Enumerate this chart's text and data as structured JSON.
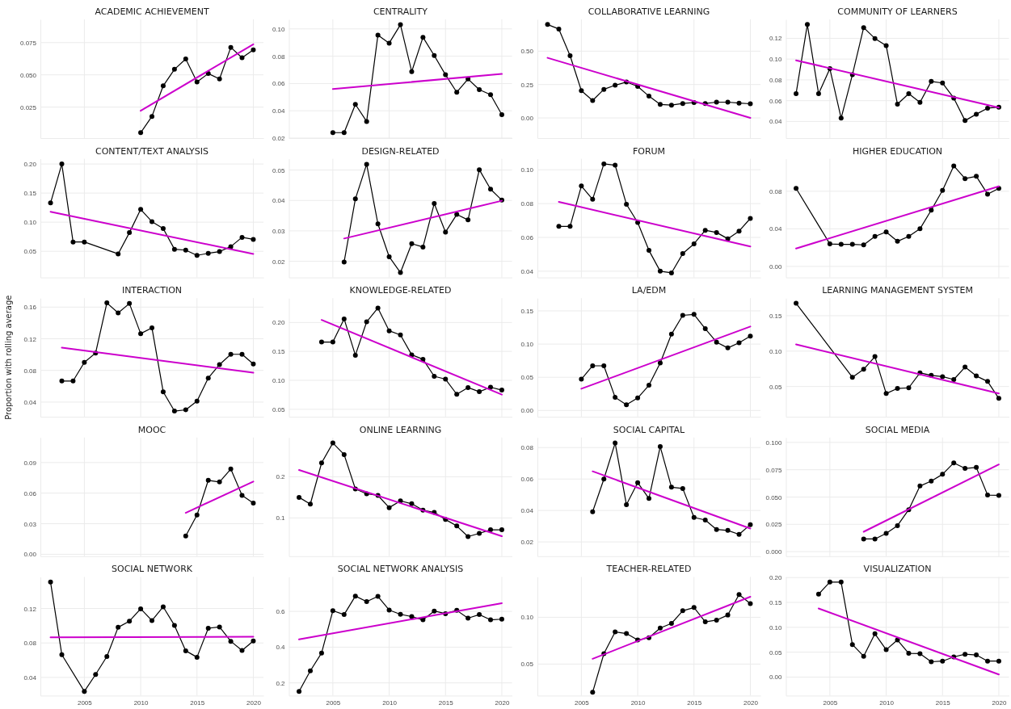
{
  "chart_data": [
    {
      "type": "line",
      "title": "ACADEMIC ACHIEVEMENT",
      "xlim": [
        2001.1,
        2020.9
      ],
      "xticks": [
        2005,
        2010,
        2015,
        2020
      ],
      "ylim": [
        0.001,
        0.093
      ],
      "yticks": [
        {
          "value": 0.025,
          "label": "0.025"
        },
        {
          "value": 0.05,
          "label": "0.050"
        },
        {
          "value": 0.075,
          "label": "0.075"
        }
      ],
      "grid": true,
      "tick_labels": "y",
      "series": [
        {
          "color": "#000000",
          "marker": "circle",
          "x": [
            2010,
            2011,
            2012,
            2013,
            2014,
            2015,
            2016,
            2017,
            2018,
            2019,
            2020
          ],
          "values": [
            0.0052,
            0.0178,
            0.0415,
            0.0543,
            0.0623,
            0.0445,
            0.051,
            0.0468,
            0.0713,
            0.0633,
            0.0693
          ]
        },
        {
          "color": "#cc00cc",
          "marker": "none",
          "x": [
            2010,
            2020
          ],
          "values": [
            0.0222,
            0.0737
          ]
        }
      ]
    },
    {
      "type": "line",
      "title": "CENTRALITY",
      "xlim": [
        2001.1,
        2020.9
      ],
      "xticks": [
        2005,
        2010,
        2015,
        2020
      ],
      "ylim": [
        0.02,
        0.107
      ],
      "yticks": [
        {
          "value": 0.02,
          "label": "0.02"
        },
        {
          "value": 0.04,
          "label": "0.04"
        },
        {
          "value": 0.06,
          "label": "0.06"
        },
        {
          "value": 0.08,
          "label": "0.08"
        },
        {
          "value": 0.1,
          "label": "0.10"
        }
      ],
      "grid": true,
      "tick_labels": "y",
      "series": [
        {
          "color": "#000000",
          "marker": "circle",
          "x": [
            2005,
            2006,
            2007,
            2008,
            2009,
            2010,
            2011,
            2012,
            2013,
            2014,
            2015,
            2016,
            2017,
            2018,
            2019,
            2020
          ],
          "values": [
            0.024,
            0.024,
            0.0447,
            0.0322,
            0.0955,
            0.0896,
            0.1031,
            0.0687,
            0.0939,
            0.0805,
            0.0664,
            0.0536,
            0.0633,
            0.0555,
            0.0518,
            0.0372
          ]
        },
        {
          "color": "#cc00cc",
          "marker": "none",
          "x": [
            2005,
            2020
          ],
          "values": [
            0.056,
            0.067
          ]
        }
      ]
    },
    {
      "type": "line",
      "title": "COLLABORATIVE LEARNING",
      "xlim": [
        2001.1,
        2020.9
      ],
      "xticks": [
        2005,
        2010,
        2015,
        2020
      ],
      "ylim": [
        -0.151,
        0.738
      ],
      "yticks": [
        {
          "value": 0,
          "label": "0.00"
        },
        {
          "value": 0.25,
          "label": "0.25"
        },
        {
          "value": 0.5,
          "label": "0.50"
        }
      ],
      "grid": true,
      "tick_labels": "y",
      "series": [
        {
          "color": "#000000",
          "marker": "circle",
          "x": [
            2002,
            2003,
            2004,
            2005,
            2006,
            2007,
            2008,
            2009,
            2010,
            2011,
            2012,
            2013,
            2014,
            2015,
            2016,
            2017,
            2018,
            2019,
            2020
          ],
          "values": [
            0.6995,
            0.666,
            0.466,
            0.204,
            0.13,
            0.214,
            0.245,
            0.269,
            0.236,
            0.163,
            0.101,
            0.096,
            0.108,
            0.115,
            0.108,
            0.118,
            0.118,
            0.111,
            0.106
          ]
        },
        {
          "color": "#cc00cc",
          "marker": "none",
          "x": [
            2002,
            2020
          ],
          "values": [
            0.45,
            0
          ]
        }
      ]
    },
    {
      "type": "line",
      "title": "COMMUNITY OF LEARNERS",
      "xlim": [
        2001.1,
        2020.9
      ],
      "xticks": [
        2005,
        2010,
        2015,
        2020
      ],
      "ylim": [
        0.024,
        0.1382
      ],
      "yticks": [
        {
          "value": 0.04,
          "label": "0.04"
        },
        {
          "value": 0.06,
          "label": "0.06"
        },
        {
          "value": 0.08,
          "label": "0.08"
        },
        {
          "value": 0.1,
          "label": "0.10"
        },
        {
          "value": 0.12,
          "label": "0.12"
        }
      ],
      "grid": true,
      "tick_labels": "y",
      "series": [
        {
          "color": "#000000",
          "marker": "circle",
          "x": [
            2002,
            2003,
            2004,
            2005,
            2006,
            2007,
            2008,
            2009,
            2010,
            2011,
            2012,
            2013,
            2014,
            2015,
            2016,
            2017,
            2018,
            2019,
            2020
          ],
          "values": [
            0.0667,
            0.1333,
            0.0667,
            0.0908,
            0.0432,
            0.0849,
            0.1303,
            0.1198,
            0.113,
            0.0566,
            0.0667,
            0.0584,
            0.0785,
            0.077,
            0.0625,
            0.0408,
            0.047,
            0.0528,
            0.0538
          ]
        },
        {
          "color": "#cc00cc",
          "marker": "none",
          "x": [
            2002,
            2020
          ],
          "values": [
            0.0988,
            0.0534
          ]
        }
      ]
    },
    {
      "type": "line",
      "title": "CONTENT/TEXT ANALYSIS",
      "xlim": [
        2001.1,
        2020.9
      ],
      "xticks": [
        2005,
        2010,
        2015,
        2020
      ],
      "ylim": [
        0.005,
        0.209
      ],
      "yticks": [
        {
          "value": 0.05,
          "label": "0.05"
        },
        {
          "value": 0.1,
          "label": "0.10"
        },
        {
          "value": 0.15,
          "label": "0.15"
        },
        {
          "value": 0.2,
          "label": "0.20"
        }
      ],
      "grid": true,
      "tick_labels": "y",
      "series": [
        {
          "color": "#000000",
          "marker": "circle",
          "x": [
            2002,
            2003,
            2004,
            2005,
            2008,
            2009,
            2010,
            2011,
            2012,
            2013,
            2014,
            2015,
            2016,
            2017,
            2018,
            2019,
            2020
          ],
          "values": [
            0.133,
            0.2,
            0.066,
            0.066,
            0.0455,
            0.082,
            0.122,
            0.101,
            0.089,
            0.0535,
            0.052,
            0.043,
            0.0465,
            0.0495,
            0.058,
            0.074,
            0.0705
          ]
        },
        {
          "color": "#cc00cc",
          "marker": "none",
          "x": [
            2002,
            2020
          ],
          "values": [
            0.118,
            0.0455
          ]
        }
      ]
    },
    {
      "type": "line",
      "title": "DESIGN-RELATED",
      "xlim": [
        2001.1,
        2020.9
      ],
      "xticks": [
        2005,
        2010,
        2015,
        2020
      ],
      "ylim": [
        0.0147,
        0.0537
      ],
      "yticks": [
        {
          "value": 0.02,
          "label": "0.02"
        },
        {
          "value": 0.03,
          "label": "0.03"
        },
        {
          "value": 0.04,
          "label": "0.04"
        },
        {
          "value": 0.05,
          "label": "0.05"
        }
      ],
      "grid": true,
      "tick_labels": "y",
      "series": [
        {
          "color": "#000000",
          "marker": "circle",
          "x": [
            2006,
            2007,
            2008,
            2009,
            2010,
            2011,
            2012,
            2013,
            2014,
            2015,
            2016,
            2017,
            2018,
            2019,
            2020
          ],
          "values": [
            0.0198,
            0.0405,
            0.0519,
            0.0323,
            0.0215,
            0.0163,
            0.0258,
            0.0247,
            0.039,
            0.0296,
            0.0354,
            0.0336,
            0.0501,
            0.0437,
            0.0401
          ]
        },
        {
          "color": "#cc00cc",
          "marker": "none",
          "x": [
            2006,
            2020
          ],
          "values": [
            0.0275,
            0.0399
          ]
        }
      ]
    },
    {
      "type": "line",
      "title": "FORUM",
      "xlim": [
        2001.1,
        2020.9
      ],
      "xticks": [
        2005,
        2010,
        2015,
        2020
      ],
      "ylim": [
        0.0363,
        0.1065
      ],
      "yticks": [
        {
          "value": 0.04,
          "label": "0.04"
        },
        {
          "value": 0.06,
          "label": "0.06"
        },
        {
          "value": 0.08,
          "label": "0.08"
        },
        {
          "value": 0.1,
          "label": "0.10"
        }
      ],
      "grid": true,
      "tick_labels": "y",
      "series": [
        {
          "color": "#000000",
          "marker": "circle",
          "x": [
            2003,
            2004,
            2005,
            2006,
            2007,
            2008,
            2009,
            2010,
            2011,
            2012,
            2013,
            2014,
            2015,
            2016,
            2017,
            2018,
            2019,
            2020
          ],
          "values": [
            0.0665,
            0.0665,
            0.0904,
            0.0825,
            0.1035,
            0.1027,
            0.0796,
            0.0688,
            0.0523,
            0.04,
            0.039,
            0.0504,
            0.0562,
            0.0642,
            0.0629,
            0.0592,
            0.0637,
            0.0712
          ]
        },
        {
          "color": "#cc00cc",
          "marker": "none",
          "x": [
            2003,
            2020
          ],
          "values": [
            0.081,
            0.0546
          ]
        }
      ]
    },
    {
      "type": "line",
      "title": "HIGHER EDUCATION",
      "xlim": [
        2001.1,
        2020.9
      ],
      "xticks": [
        2005,
        2010,
        2015,
        2020
      ],
      "ylim": [
        -0.0118,
        0.1146
      ],
      "yticks": [
        {
          "value": 0,
          "label": "0.00"
        },
        {
          "value": 0.04,
          "label": "0.04"
        },
        {
          "value": 0.08,
          "label": "0.08"
        }
      ],
      "grid": true,
      "tick_labels": "y",
      "series": [
        {
          "color": "#000000",
          "marker": "circle",
          "x": [
            2002,
            2005,
            2006,
            2007,
            2008,
            2009,
            2010,
            2011,
            2012,
            2013,
            2014,
            2015,
            2016,
            2017,
            2018,
            2019,
            2020
          ],
          "values": [
            0.0831,
            0.0239,
            0.0235,
            0.0235,
            0.0229,
            0.0319,
            0.0367,
            0.0267,
            0.0319,
            0.04,
            0.0599,
            0.081,
            0.107,
            0.0935,
            0.0959,
            0.0769,
            0.0831
          ]
        },
        {
          "color": "#cc00cc",
          "marker": "none",
          "x": [
            2002,
            2020
          ],
          "values": [
            0.019,
            0.0852
          ]
        }
      ]
    },
    {
      "type": "line",
      "title": "INTERACTION",
      "ylabel": "Proportion with rolling average",
      "xlim": [
        2001.1,
        2020.9
      ],
      "xticks": [
        2005,
        2010,
        2015,
        2020
      ],
      "ylim": [
        0.0214,
        0.1713
      ],
      "yticks": [
        {
          "value": 0.04,
          "label": "0.04"
        },
        {
          "value": 0.08,
          "label": "0.08"
        },
        {
          "value": 0.12,
          "label": "0.12"
        },
        {
          "value": 0.16,
          "label": "0.16"
        }
      ],
      "grid": true,
      "tick_labels": "y",
      "series": [
        {
          "color": "#000000",
          "marker": "circle",
          "x": [
            2003,
            2004,
            2005,
            2006,
            2007,
            2008,
            2009,
            2010,
            2011,
            2012,
            2013,
            2014,
            2015,
            2016,
            2017,
            2018,
            2019,
            2020
          ],
          "values": [
            0.0667,
            0.0667,
            0.0902,
            0.102,
            0.1653,
            0.1527,
            0.1645,
            0.1265,
            0.1338,
            0.053,
            0.0287,
            0.0303,
            0.0413,
            0.0704,
            0.0874,
            0.1004,
            0.1004,
            0.0882
          ]
        },
        {
          "color": "#cc00cc",
          "marker": "none",
          "x": [
            2003,
            2020
          ],
          "values": [
            0.1087,
            0.0771
          ]
        }
      ]
    },
    {
      "type": "line",
      "title": "KNOWLEDGE-RELATED",
      "xlim": [
        2001.1,
        2020.9
      ],
      "xticks": [
        2005,
        2010,
        2015,
        2020
      ],
      "ylim": [
        0.037,
        0.242
      ],
      "yticks": [
        {
          "value": 0.05,
          "label": "0.05"
        },
        {
          "value": 0.1,
          "label": "0.10"
        },
        {
          "value": 0.15,
          "label": "0.15"
        },
        {
          "value": 0.2,
          "label": "0.20"
        }
      ],
      "grid": true,
      "tick_labels": "y",
      "series": [
        {
          "color": "#000000",
          "marker": "circle",
          "x": [
            2004,
            2005,
            2006,
            2007,
            2008,
            2009,
            2010,
            2011,
            2012,
            2013,
            2014,
            2015,
            2016,
            2017,
            2018,
            2019,
            2020
          ],
          "values": [
            0.1662,
            0.1662,
            0.2061,
            0.1434,
            0.2011,
            0.2249,
            0.1856,
            0.1784,
            0.1441,
            0.1364,
            0.107,
            0.1021,
            0.076,
            0.0876,
            0.0804,
            0.0882,
            0.0832
          ]
        },
        {
          "color": "#cc00cc",
          "marker": "none",
          "x": [
            2004,
            2020
          ],
          "values": [
            0.2044,
            0.0754
          ]
        }
      ]
    },
    {
      "type": "line",
      "title": "LA/EDM",
      "xlim": [
        2001.1,
        2020.9
      ],
      "xticks": [
        2005,
        2010,
        2015,
        2020
      ],
      "ylim": [
        -0.0096,
        0.1692
      ],
      "yticks": [
        {
          "value": 0,
          "label": "0.00"
        },
        {
          "value": 0.05,
          "label": "0.05"
        },
        {
          "value": 0.1,
          "label": "0.10"
        },
        {
          "value": 0.15,
          "label": "0.15"
        }
      ],
      "grid": true,
      "tick_labels": "y",
      "series": [
        {
          "color": "#000000",
          "marker": "circle",
          "x": [
            2005,
            2006,
            2007,
            2008,
            2009,
            2010,
            2011,
            2012,
            2013,
            2014,
            2015,
            2016,
            2017,
            2018,
            2019,
            2020
          ],
          "values": [
            0.0471,
            0.0673,
            0.0673,
            0.0197,
            0.0087,
            0.0188,
            0.038,
            0.0716,
            0.1149,
            0.1433,
            0.1447,
            0.1231,
            0.1029,
            0.0942,
            0.1019,
            0.112
          ]
        },
        {
          "color": "#cc00cc",
          "marker": "none",
          "x": [
            2005,
            2020
          ],
          "values": [
            0.0327,
            0.1264
          ]
        }
      ]
    },
    {
      "type": "line",
      "title": "LEARNING MANAGEMENT SYSTEM",
      "xlim": [
        2001.1,
        2020.9
      ],
      "xticks": [
        2005,
        2010,
        2015,
        2020
      ],
      "ylim": [
        0.0072,
        0.1748
      ],
      "yticks": [
        {
          "value": 0.05,
          "label": "0.05"
        },
        {
          "value": 0.1,
          "label": "0.10"
        },
        {
          "value": 0.15,
          "label": "0.15"
        }
      ],
      "grid": true,
      "tick_labels": "y",
      "series": [
        {
          "color": "#000000",
          "marker": "circle",
          "x": [
            2002,
            2007,
            2008,
            2009,
            2010,
            2011,
            2012,
            2013,
            2014,
            2015,
            2016,
            2017,
            2018,
            2019,
            2020
          ],
          "values": [
            0.1676,
            0.0631,
            0.0743,
            0.0923,
            0.0401,
            0.0473,
            0.0482,
            0.0694,
            0.0658,
            0.064,
            0.0599,
            0.0775,
            0.0649,
            0.0572,
            0.0333
          ]
        },
        {
          "color": "#cc00cc",
          "marker": "none",
          "x": [
            2002,
            2020
          ],
          "values": [
            0.1095,
            0.0401
          ]
        }
      ]
    },
    {
      "type": "line",
      "title": "MOOC",
      "xlim": [
        2001.1,
        2020.9
      ],
      "xticks": [
        2005,
        2010,
        2015,
        2020
      ],
      "ylim": [
        -0.0019,
        0.1146
      ],
      "yticks": [
        {
          "value": 0,
          "label": "0.00"
        },
        {
          "value": 0.03,
          "label": "0.03"
        },
        {
          "value": 0.06,
          "label": "0.06"
        },
        {
          "value": 0.09,
          "label": "0.09"
        }
      ],
      "grid": true,
      "tick_labels": "y",
      "series": [
        {
          "color": "#000000",
          "marker": "circle",
          "x": [
            2014,
            2015,
            2016,
            2017,
            2018,
            2019,
            2020
          ],
          "values": [
            0.018,
            0.0385,
            0.0726,
            0.071,
            0.0837,
            0.0578,
            0.0502
          ]
        },
        {
          "color": "#cc00cc",
          "marker": "none",
          "x": [
            2014,
            2020
          ],
          "values": [
            0.0407,
            0.0714
          ]
        }
      ]
    },
    {
      "type": "line",
      "title": "ONLINE LEARNING",
      "xlim": [
        2001.1,
        2020.9
      ],
      "xticks": [
        2005,
        2010,
        2015,
        2020
      ],
      "ylim": [
        0.007,
        0.2953
      ],
      "yticks": [
        {
          "value": 0.1,
          "label": "0.1"
        },
        {
          "value": 0.2,
          "label": "0.2"
        }
      ],
      "grid": true,
      "tick_labels": "y",
      "series": [
        {
          "color": "#000000",
          "marker": "circle",
          "x": [
            2002,
            2003,
            2004,
            2005,
            2006,
            2007,
            2008,
            2009,
            2010,
            2011,
            2012,
            2013,
            2014,
            2015,
            2016,
            2017,
            2018,
            2019,
            2020
          ],
          "values": [
            0.15,
            0.1336,
            0.2336,
            0.282,
            0.2539,
            0.1703,
            0.1586,
            0.1547,
            0.125,
            0.1414,
            0.1344,
            0.1187,
            0.1133,
            0.0961,
            0.0805,
            0.0547,
            0.0625,
            0.0711,
            0.0711
          ]
        },
        {
          "color": "#cc00cc",
          "marker": "none",
          "x": [
            2002,
            2020
          ],
          "values": [
            0.2164,
            0.0555
          ]
        }
      ]
    },
    {
      "type": "line",
      "title": "SOCIAL CAPITAL",
      "xlim": [
        2001.1,
        2020.9
      ],
      "xticks": [
        2005,
        2010,
        2015,
        2020
      ],
      "ylim": [
        0.0109,
        0.0864
      ],
      "yticks": [
        {
          "value": 0.02,
          "label": "0.02"
        },
        {
          "value": 0.04,
          "label": "0.04"
        },
        {
          "value": 0.06,
          "label": "0.06"
        },
        {
          "value": 0.08,
          "label": "0.08"
        }
      ],
      "grid": true,
      "tick_labels": "y",
      "series": [
        {
          "color": "#000000",
          "marker": "circle",
          "x": [
            2006,
            2007,
            2008,
            2009,
            2010,
            2011,
            2012,
            2013,
            2014,
            2015,
            2016,
            2017,
            2018,
            2019,
            2020
          ],
          "values": [
            0.0392,
            0.06,
            0.0829,
            0.0437,
            0.0577,
            0.0476,
            0.0806,
            0.0548,
            0.054,
            0.0356,
            0.0339,
            0.0279,
            0.0273,
            0.0248,
            0.031
          ]
        },
        {
          "color": "#cc00cc",
          "marker": "none",
          "x": [
            2006,
            2020
          ],
          "values": [
            0.0649,
            0.0285
          ]
        }
      ]
    },
    {
      "type": "line",
      "title": "SOCIAL MEDIA",
      "xlim": [
        2001.1,
        2020.9
      ],
      "xticks": [
        2005,
        2010,
        2015,
        2020
      ],
      "ylim": [
        -0.0042,
        0.1045
      ],
      "yticks": [
        {
          "value": 0,
          "label": "0.000"
        },
        {
          "value": 0.025,
          "label": "0.025"
        },
        {
          "value": 0.05,
          "label": "0.050"
        },
        {
          "value": 0.075,
          "label": "0.075"
        },
        {
          "value": 0.1,
          "label": "0.100"
        }
      ],
      "grid": true,
      "tick_labels": "y",
      "series": [
        {
          "color": "#000000",
          "marker": "circle",
          "x": [
            2008,
            2009,
            2010,
            2011,
            2012,
            2013,
            2014,
            2015,
            2016,
            2017,
            2018,
            2019,
            2020
          ],
          "values": [
            0.0116,
            0.0116,
            0.0167,
            0.0238,
            0.0384,
            0.0601,
            0.0646,
            0.0708,
            0.0813,
            0.0762,
            0.0771,
            0.0518,
            0.0515
          ]
        },
        {
          "color": "#cc00cc",
          "marker": "none",
          "x": [
            2008,
            2020
          ],
          "values": [
            0.0182,
            0.0798
          ]
        }
      ]
    },
    {
      "type": "line",
      "title": "SOCIAL NETWORK",
      "xlim": [
        2001.1,
        2020.9
      ],
      "xticks": [
        2005,
        2010,
        2015,
        2020
      ],
      "ylim": [
        0.0189,
        0.1566
      ],
      "yticks": [
        {
          "value": 0.04,
          "label": "0.04"
        },
        {
          "value": 0.08,
          "label": "0.08"
        },
        {
          "value": 0.12,
          "label": "0.12"
        }
      ],
      "grid": true,
      "series": [
        {
          "color": "#000000",
          "marker": "circle",
          "x": [
            2002,
            2003,
            2005,
            2006,
            2007,
            2008,
            2009,
            2010,
            2011,
            2012,
            2013,
            2014,
            2015,
            2016,
            2017,
            2018,
            2019,
            2020
          ],
          "values": [
            0.1506,
            0.0664,
            0.0238,
            0.0434,
            0.0642,
            0.0981,
            0.1053,
            0.1196,
            0.106,
            0.1219,
            0.1004,
            0.0709,
            0.0634,
            0.097,
            0.0985,
            0.0819,
            0.0713,
            0.0823
          ]
        },
        {
          "color": "#cc00cc",
          "marker": "none",
          "x": [
            2002,
            2020
          ],
          "values": [
            0.0864,
            0.0872
          ]
        }
      ]
    },
    {
      "type": "line",
      "title": "SOCIAL NETWORK ANALYSIS",
      "xlim": [
        2001.1,
        2020.9
      ],
      "xticks": [
        2005,
        2010,
        2015,
        2020
      ],
      "ylim": [
        0.1291,
        0.7927
      ],
      "yticks": [
        {
          "value": 0.2,
          "label": "0.2"
        },
        {
          "value": 0.4,
          "label": "0.4"
        },
        {
          "value": 0.6,
          "label": "0.6"
        }
      ],
      "grid": true,
      "series": [
        {
          "color": "#000000",
          "marker": "circle",
          "x": [
            2002,
            2003,
            2004,
            2005,
            2006,
            2007,
            2008,
            2009,
            2010,
            2011,
            2012,
            2013,
            2014,
            2015,
            2016,
            2017,
            2018,
            2019,
            2020
          ],
          "values": [
            0.1527,
            0.2673,
            0.3673,
            0.6036,
            0.5818,
            0.6855,
            0.6545,
            0.6836,
            0.6073,
            0.5836,
            0.5709,
            0.5527,
            0.6018,
            0.5873,
            0.6055,
            0.5618,
            0.5818,
            0.5527,
            0.5564
          ]
        },
        {
          "color": "#cc00cc",
          "marker": "none",
          "x": [
            2002,
            2020
          ],
          "values": [
            0.4436,
            0.6455
          ]
        }
      ]
    },
    {
      "type": "line",
      "title": "TEACHER-RELATED",
      "xlim": [
        2001.1,
        2020.9
      ],
      "xticks": [
        2005,
        2010,
        2015,
        2020
      ],
      "ylim": [
        0.0163,
        0.1431
      ],
      "yticks": [
        {
          "value": 0.05,
          "label": "0.05"
        },
        {
          "value": 0.1,
          "label": "0.10"
        }
      ],
      "grid": true,
      "series": [
        {
          "color": "#000000",
          "marker": "circle",
          "x": [
            2006,
            2007,
            2008,
            2009,
            2010,
            2011,
            2012,
            2013,
            2014,
            2015,
            2016,
            2017,
            2018,
            2019,
            2020
          ],
          "values": [
            0.0198,
            0.0611,
            0.0844,
            0.0826,
            0.0757,
            0.0781,
            0.0885,
            0.0934,
            0.1069,
            0.1104,
            0.0951,
            0.0969,
            0.1024,
            0.1243,
            0.1146
          ]
        },
        {
          "color": "#cc00cc",
          "marker": "none",
          "x": [
            2006,
            2020
          ],
          "values": [
            0.0556,
            0.1219
          ]
        }
      ]
    },
    {
      "type": "line",
      "title": "VISUALIZATION",
      "xlim": [
        2001.1,
        2020.9
      ],
      "xticks": [
        2005,
        2010,
        2015,
        2020
      ],
      "ylim": [
        -0.0373,
        0.2013
      ],
      "yticks": [
        {
          "value": 0,
          "label": "0.00"
        },
        {
          "value": 0.05,
          "label": "0.05"
        },
        {
          "value": 0.1,
          "label": "0.10"
        },
        {
          "value": 0.15,
          "label": "0.15"
        },
        {
          "value": 0.2,
          "label": "0.20"
        }
      ],
      "grid": true,
      "series": [
        {
          "color": "#000000",
          "marker": "circle",
          "x": [
            2004,
            2005,
            2006,
            2007,
            2008,
            2009,
            2010,
            2011,
            2012,
            2013,
            2014,
            2015,
            2016,
            2017,
            2018,
            2019,
            2020
          ],
          "values": [
            0.1667,
            0.1908,
            0.1908,
            0.0654,
            0.0418,
            0.087,
            0.0549,
            0.0745,
            0.0477,
            0.0471,
            0.0307,
            0.032,
            0.0405,
            0.0458,
            0.0444,
            0.032,
            0.032
          ]
        },
        {
          "color": "#cc00cc",
          "marker": "none",
          "x": [
            2004,
            2020
          ],
          "values": [
            0.1379,
            0.0052
          ]
        }
      ]
    }
  ]
}
